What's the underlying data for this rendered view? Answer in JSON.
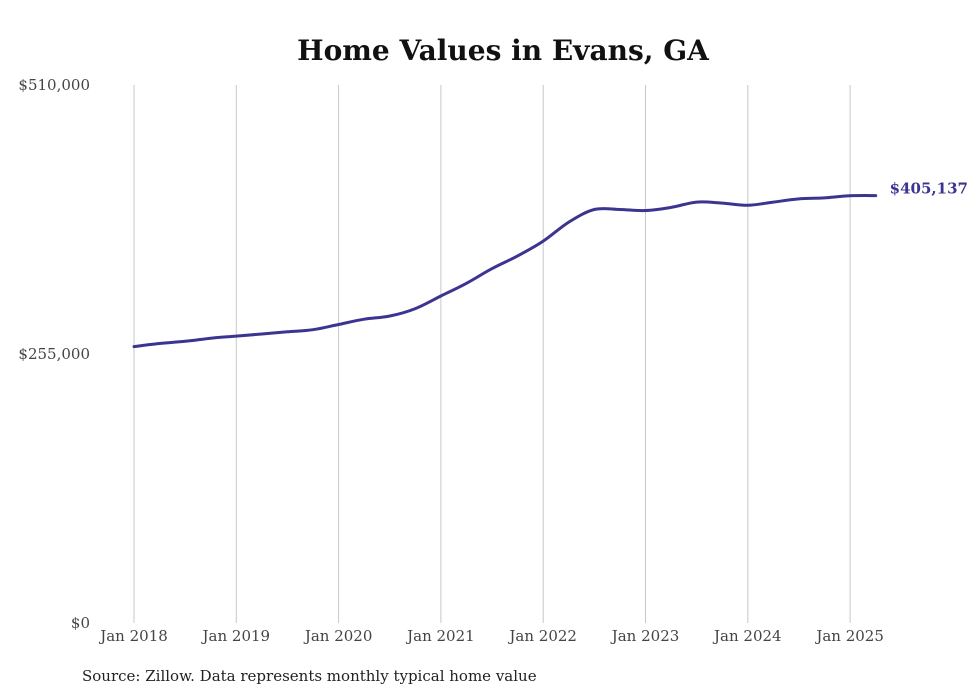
{
  "chart_data": {
    "type": "line",
    "title": "Home Values in Evans, GA",
    "xlabel": "",
    "ylabel": "",
    "ylim": [
      0,
      510000
    ],
    "y_ticks": [
      {
        "value": 0,
        "label": "$0"
      },
      {
        "value": 255000,
        "label": "$255,000"
      },
      {
        "value": 510000,
        "label": "$510,000"
      }
    ],
    "x_ticks": [
      {
        "date": "2018-01",
        "label": "Jan 2018"
      },
      {
        "date": "2019-01",
        "label": "Jan 2019"
      },
      {
        "date": "2020-01",
        "label": "Jan 2020"
      },
      {
        "date": "2021-01",
        "label": "Jan 2021"
      },
      {
        "date": "2022-01",
        "label": "Jan 2022"
      },
      {
        "date": "2023-01",
        "label": "Jan 2023"
      },
      {
        "date": "2024-01",
        "label": "Jan 2024"
      },
      {
        "date": "2025-01",
        "label": "Jan 2025"
      }
    ],
    "grid": {
      "vertical": true,
      "horizontal": false
    },
    "legend": "none",
    "line_color": "#3b3491",
    "grid_color": "#c8c8c8",
    "end_label": "$405,137",
    "series": [
      {
        "points": [
          [
            "2018-01",
            262000
          ],
          [
            "2018-04",
            265000
          ],
          [
            "2018-07",
            267000
          ],
          [
            "2018-10",
            270000
          ],
          [
            "2019-01",
            272000
          ],
          [
            "2019-04",
            274000
          ],
          [
            "2019-07",
            276000
          ],
          [
            "2019-10",
            278000
          ],
          [
            "2020-01",
            283000
          ],
          [
            "2020-04",
            288000
          ],
          [
            "2020-07",
            291000
          ],
          [
            "2020-10",
            298000
          ],
          [
            "2021-01",
            310000
          ],
          [
            "2021-04",
            322000
          ],
          [
            "2021-07",
            336000
          ],
          [
            "2021-10",
            348000
          ],
          [
            "2022-01",
            362000
          ],
          [
            "2022-04",
            380000
          ],
          [
            "2022-07",
            392000
          ],
          [
            "2022-10",
            392000
          ],
          [
            "2023-01",
            391000
          ],
          [
            "2023-04",
            394000
          ],
          [
            "2023-07",
            399000
          ],
          [
            "2023-10",
            398000
          ],
          [
            "2024-01",
            396000
          ],
          [
            "2024-04",
            399000
          ],
          [
            "2024-07",
            402000
          ],
          [
            "2024-10",
            403000
          ],
          [
            "2025-01",
            405000
          ],
          [
            "2025-04",
            405137
          ]
        ]
      }
    ]
  },
  "source_note": "Source: Zillow. Data represents monthly typical home value"
}
